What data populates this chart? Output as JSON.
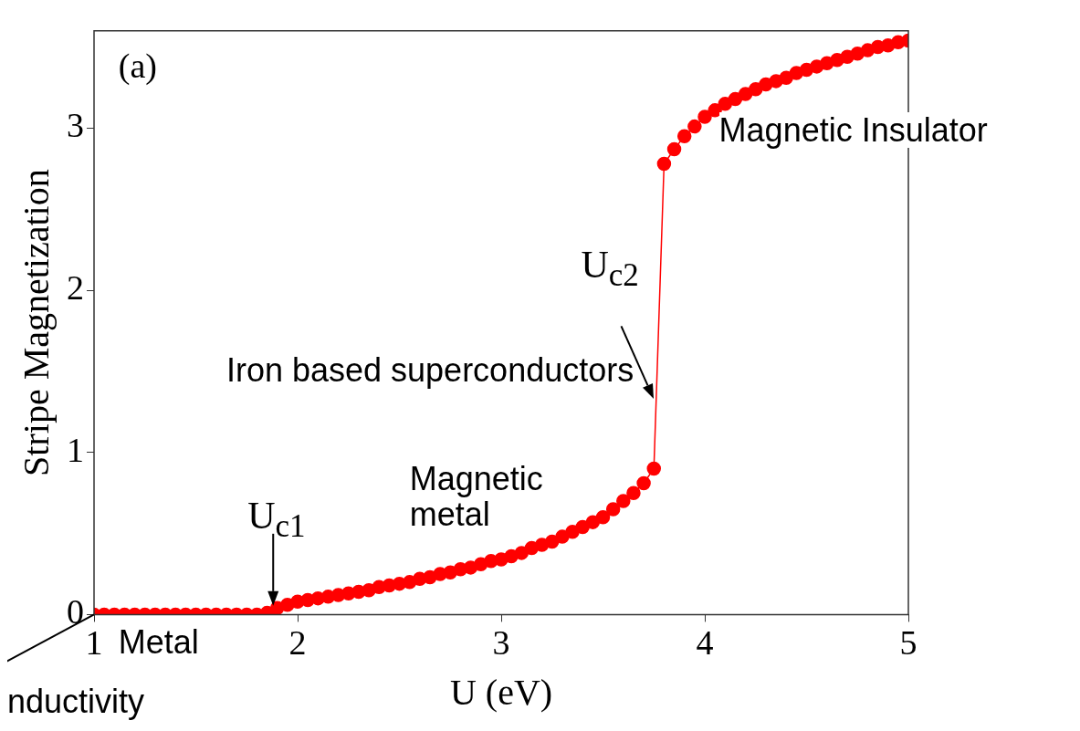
{
  "chart_data": {
    "type": "line",
    "xlabel": "U (eV)",
    "ylabel": "Stripe Magnetization",
    "xlim": [
      1,
      5
    ],
    "ylim": [
      0,
      3.6
    ],
    "xticks": [
      1,
      2,
      3,
      4,
      5
    ],
    "yticks": [
      0,
      1,
      2,
      3
    ],
    "grid": false,
    "legend": false,
    "marker": "circle",
    "line_style": "solid",
    "x": [
      1.0,
      1.05,
      1.1,
      1.15,
      1.2,
      1.25,
      1.3,
      1.35,
      1.4,
      1.45,
      1.5,
      1.55,
      1.6,
      1.65,
      1.7,
      1.75,
      1.8,
      1.85,
      1.9,
      1.95,
      2.0,
      2.05,
      2.1,
      2.15,
      2.2,
      2.25,
      2.3,
      2.35,
      2.4,
      2.45,
      2.5,
      2.55,
      2.6,
      2.65,
      2.7,
      2.75,
      2.8,
      2.85,
      2.9,
      2.95,
      3.0,
      3.05,
      3.1,
      3.15,
      3.2,
      3.25,
      3.3,
      3.35,
      3.4,
      3.45,
      3.5,
      3.55,
      3.6,
      3.65,
      3.7,
      3.75,
      3.8,
      3.85,
      3.9,
      3.95,
      4.0,
      4.05,
      4.1,
      4.15,
      4.2,
      4.25,
      4.3,
      4.35,
      4.4,
      4.45,
      4.5,
      4.55,
      4.6,
      4.65,
      4.7,
      4.75,
      4.8,
      4.85,
      4.9,
      4.95,
      5.0
    ],
    "series": [
      {
        "color": "#ff0000",
        "values": [
          0,
          0,
          0,
          0,
          0,
          0,
          0,
          0,
          0,
          0,
          0,
          0,
          0,
          0,
          0,
          0,
          0,
          0.01,
          0.04,
          0.06,
          0.08,
          0.09,
          0.1,
          0.11,
          0.12,
          0.13,
          0.14,
          0.15,
          0.17,
          0.18,
          0.19,
          0.2,
          0.22,
          0.23,
          0.25,
          0.26,
          0.28,
          0.29,
          0.31,
          0.33,
          0.34,
          0.36,
          0.38,
          0.41,
          0.43,
          0.45,
          0.48,
          0.51,
          0.54,
          0.57,
          0.6,
          0.65,
          0.7,
          0.75,
          0.81,
          0.9,
          2.78,
          2.87,
          2.95,
          3.01,
          3.07,
          3.11,
          3.15,
          3.18,
          3.21,
          3.24,
          3.27,
          3.29,
          3.31,
          3.34,
          3.36,
          3.38,
          3.4,
          3.42,
          3.44,
          3.46,
          3.48,
          3.5,
          3.51,
          3.53,
          3.54
        ]
      }
    ],
    "annotations": [
      "(a)",
      "Magnetic metal",
      "Iron based superconductors",
      "Magnetic Insulator",
      "Metal",
      {
        "text": "U$_{c1}$",
        "x": 1.88,
        "y": 0.02
      },
      {
        "text": "U$_{c2}$",
        "x": 3.76,
        "y": 1.3
      },
      {
        "text": "nductivity",
        "x": 1,
        "y": 0
      }
    ]
  }
}
